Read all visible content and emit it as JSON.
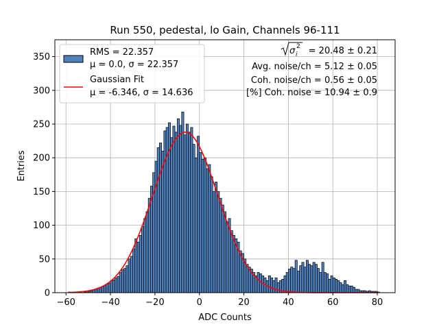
{
  "chart_data": {
    "type": "bar",
    "title": "Run 550, pedestal, lo Gain, Channels 96-111",
    "xlabel": "ADC Counts",
    "ylabel": "Entries",
    "xlim": [
      -65,
      88
    ],
    "ylim": [
      0,
      375
    ],
    "xticks": [
      -60,
      -40,
      -20,
      0,
      20,
      40,
      60,
      80
    ],
    "yticks": [
      0,
      50,
      100,
      150,
      200,
      250,
      300,
      350
    ],
    "grid": true,
    "bar_color": "#4f81bd",
    "fit_color": "#ff0000",
    "bin_width": 1,
    "bins_x": [
      -59,
      -58,
      -57,
      -56,
      -55,
      -54,
      -53,
      -52,
      -51,
      -50,
      -49,
      -48,
      -47,
      -46,
      -45,
      -44,
      -43,
      -42,
      -41,
      -40,
      -39,
      -38,
      -37,
      -36,
      -35,
      -34,
      -33,
      -32,
      -31,
      -30,
      -29,
      -28,
      -27,
      -26,
      -25,
      -24,
      -23,
      -22,
      -21,
      -20,
      -19,
      -18,
      -17,
      -16,
      -15,
      -14,
      -13,
      -12,
      -11,
      -10,
      -9,
      -8,
      -7,
      -6,
      -5,
      -4,
      -3,
      -2,
      -1,
      0,
      1,
      2,
      3,
      4,
      5,
      6,
      7,
      8,
      9,
      10,
      11,
      12,
      13,
      14,
      15,
      16,
      17,
      18,
      19,
      20,
      21,
      22,
      23,
      24,
      25,
      26,
      27,
      28,
      29,
      30,
      31,
      32,
      33,
      34,
      35,
      36,
      37,
      38,
      39,
      40,
      41,
      42,
      43,
      44,
      45,
      46,
      47,
      48,
      49,
      50,
      51,
      52,
      53,
      54,
      55,
      56,
      57,
      58,
      59,
      60,
      61,
      62,
      63,
      64,
      65,
      66,
      67,
      68,
      69,
      70,
      71,
      72,
      73,
      74,
      75,
      76,
      77,
      78,
      79,
      80
    ],
    "counts": [
      1,
      0,
      0,
      0,
      1,
      1,
      0,
      1,
      2,
      2,
      3,
      4,
      5,
      7,
      8,
      9,
      11,
      13,
      14,
      18,
      19,
      22,
      24,
      30,
      34,
      36,
      40,
      50,
      54,
      65,
      80,
      75,
      85,
      98,
      110,
      120,
      140,
      158,
      178,
      195,
      215,
      222,
      210,
      240,
      245,
      252,
      230,
      247,
      238,
      258,
      248,
      268,
      234,
      250,
      238,
      245,
      220,
      200,
      232,
      208,
      198,
      200,
      184,
      190,
      172,
      150,
      164,
      150,
      140,
      130,
      120,
      105,
      110,
      92,
      85,
      80,
      75,
      62,
      58,
      50,
      42,
      38,
      35,
      30,
      25,
      30,
      28,
      25,
      22,
      18,
      25,
      22,
      18,
      22,
      15,
      18,
      20,
      25,
      30,
      35,
      38,
      36,
      48,
      32,
      40,
      45,
      38,
      48,
      42,
      40,
      45,
      42,
      36,
      30,
      45,
      30,
      28,
      20,
      25,
      22,
      20,
      18,
      15,
      12,
      18,
      12,
      10,
      10,
      8,
      5,
      5,
      3,
      3,
      3,
      2,
      3,
      2,
      2,
      2,
      1
    ],
    "fit": {
      "mu": -6.346,
      "sigma": 14.636,
      "amplitude": 238,
      "x_range": [
        -59,
        80
      ]
    },
    "legend": {
      "position": "upper-left",
      "entries": [
        {
          "line1": "RMS = 22.357",
          "line2": "μ = 0.0, σ = 22.357",
          "marker": "patch"
        },
        {
          "line1": "Gaussian Fit",
          "line2": "μ = -6.346, σ = 14.636",
          "marker": "line"
        }
      ]
    },
    "annotations": {
      "sigma_value": " = 20.48 ± 0.21",
      "sigma_symbol": "σ",
      "sigma_sub": "i",
      "sigma_sup": "2",
      "line2": "Avg. noise/ch = 5.12 ± 0.05",
      "line3": "Coh. noise/ch = 0.56 ± 0.05",
      "line4": "[%] Coh. noise = 10.94 ± 0.9"
    }
  }
}
